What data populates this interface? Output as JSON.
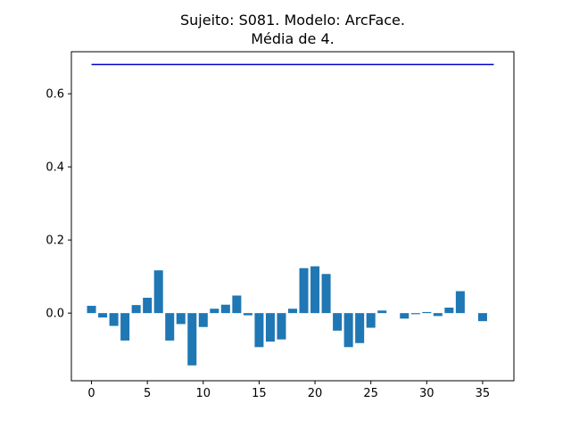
{
  "chart_data": {
    "type": "bar",
    "title_line1": "Sujeito: S081. Modelo: ArcFace.",
    "title_line2": "Média de 4.",
    "xlabel": "",
    "ylabel": "",
    "xlim": [
      -1.8,
      37.8
    ],
    "ylim": [
      -0.185,
      0.715
    ],
    "xticks": [
      0,
      5,
      10,
      15,
      20,
      25,
      30,
      35
    ],
    "yticks": [
      0.0,
      0.2,
      0.4,
      0.6
    ],
    "ytick_labels": [
      "0.0",
      "0.2",
      "0.4",
      "0.6"
    ],
    "grid": false,
    "bar_color": "#1f77b4",
    "x": [
      0,
      1,
      2,
      3,
      4,
      5,
      6,
      7,
      8,
      9,
      10,
      11,
      12,
      13,
      14,
      15,
      16,
      17,
      18,
      19,
      20,
      21,
      22,
      23,
      24,
      25,
      26,
      27,
      28,
      29,
      30,
      31,
      32,
      33,
      34,
      35
    ],
    "values": [
      0.02,
      -0.012,
      -0.035,
      -0.075,
      0.022,
      0.042,
      0.117,
      -0.075,
      -0.03,
      -0.143,
      -0.038,
      0.012,
      0.023,
      0.048,
      -0.006,
      -0.093,
      -0.078,
      -0.072,
      0.012,
      0.123,
      0.128,
      0.107,
      -0.048,
      -0.093,
      -0.082,
      -0.04,
      0.007,
      0.0,
      -0.015,
      -0.003,
      0.003,
      -0.008,
      0.015,
      0.06,
      0.0,
      -0.022
    ],
    "reference_line": {
      "value": 0.68,
      "x_start": 0,
      "x_end": 36,
      "color": "#0000cc"
    }
  }
}
